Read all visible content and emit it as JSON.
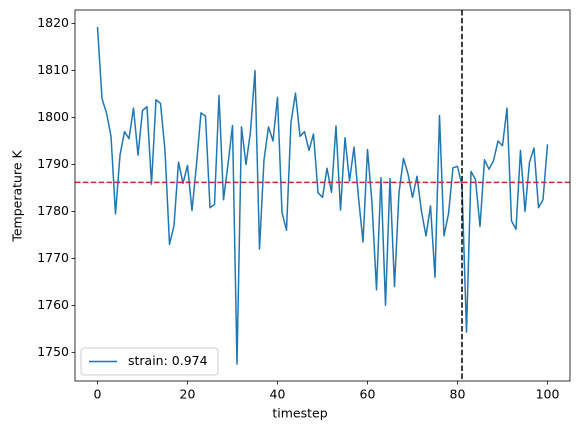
{
  "chart_data": {
    "type": "line",
    "xlabel": "timestep",
    "ylabel": "Temperature K",
    "x": [
      0,
      1,
      2,
      3,
      4,
      5,
      6,
      7,
      8,
      9,
      10,
      11,
      12,
      13,
      14,
      15,
      16,
      17,
      18,
      19,
      20,
      21,
      22,
      23,
      24,
      25,
      26,
      27,
      28,
      29,
      30,
      31,
      32,
      33,
      34,
      35,
      36,
      37,
      38,
      39,
      40,
      41,
      42,
      43,
      44,
      45,
      46,
      47,
      48,
      49,
      50,
      51,
      52,
      53,
      54,
      55,
      56,
      57,
      58,
      59,
      60,
      61,
      62,
      63,
      64,
      65,
      66,
      67,
      68,
      69,
      70,
      71,
      72,
      73,
      74,
      75,
      76,
      77,
      78,
      79,
      80,
      81,
      82,
      83,
      84,
      85,
      86,
      87,
      88,
      89,
      90,
      91,
      92,
      93,
      94,
      95,
      96,
      97,
      98,
      99,
      100
    ],
    "series": [
      {
        "name": "strain: 0.974",
        "color": "#1f77b4",
        "values": [
          1819.3,
          1804,
          1801,
          1796,
          1779.5,
          1792,
          1797,
          1795.5,
          1802,
          1792,
          1801.5,
          1802.3,
          1785.8,
          1803.8,
          1803,
          1793,
          1773,
          1777,
          1790.5,
          1786,
          1789.8,
          1780.2,
          1790,
          1801,
          1800.3,
          1780.8,
          1781.5,
          1804.7,
          1782.5,
          1790,
          1798.3,
          1747.5,
          1798,
          1790,
          1797,
          1810,
          1772,
          1791,
          1798,
          1795,
          1804.3,
          1779.8,
          1776,
          1799,
          1805.2,
          1796,
          1797,
          1793,
          1796.5,
          1784,
          1783,
          1789.2,
          1784.1,
          1798.2,
          1780.3,
          1795.7,
          1786.5,
          1793.7,
          1783,
          1773.5,
          1793.2,
          1781.8,
          1763.3,
          1787.2,
          1760,
          1787,
          1764,
          1784,
          1791.3,
          1788,
          1783,
          1787.5,
          1780,
          1774.8,
          1781.2,
          1766,
          1800.4,
          1774.8,
          1779.5,
          1789.3,
          1789.6,
          1785.5,
          1754.3,
          1788.5,
          1786.8,
          1776.8,
          1791,
          1789,
          1790.8,
          1795,
          1794,
          1802,
          1778,
          1776.2,
          1793,
          1780,
          1790.5,
          1793.5,
          1780.8,
          1782.5,
          1794.3
        ]
      }
    ],
    "hline": {
      "y": 1786.2,
      "color": "#d62728"
    },
    "vline": {
      "x": 81,
      "color": "#000000"
    },
    "xlim": [
      -5,
      105
    ],
    "ylim": [
      1743.9,
      1822.9
    ],
    "xticks": [
      0,
      20,
      40,
      60,
      80,
      100
    ],
    "yticks": [
      1750,
      1760,
      1770,
      1780,
      1790,
      1800,
      1810,
      1820
    ],
    "grid": false,
    "legend": "lower left"
  }
}
